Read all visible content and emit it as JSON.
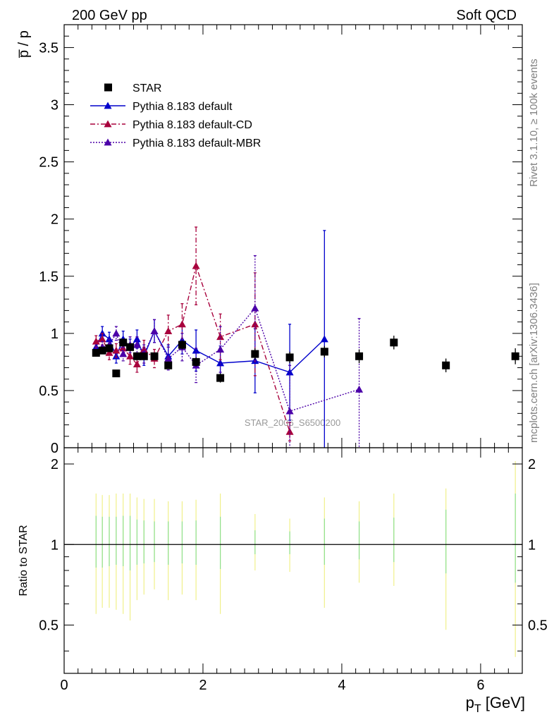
{
  "header": {
    "left": "200 GeV pp",
    "right": "Soft QCD",
    "side_top": "Rivet 3.1.10, ≥ 100k events",
    "side_bottom": "mcplots.cern.ch [arXiv:1306.3436]",
    "watermark": "STAR_2006_S6500200"
  },
  "chart_data": [
    {
      "type": "scatter",
      "panel": "main",
      "ylabel": "p̅ / p",
      "xlabel": "",
      "xlim": [
        0,
        6.6
      ],
      "ylim": [
        0,
        3.7
      ],
      "y_ticks": [
        "0",
        "0.5",
        "1",
        "1.5",
        "2",
        "2.5",
        "3",
        "3.5"
      ],
      "legend_position": "top-left",
      "series": [
        {
          "name": "STAR",
          "color": "#000000",
          "marker": "square",
          "line": "none",
          "x": [
            0.46,
            0.55,
            0.65,
            0.75,
            0.85,
            0.95,
            1.05,
            1.15,
            1.3,
            1.5,
            1.7,
            1.9,
            2.25,
            2.75,
            3.25,
            3.75,
            4.25,
            4.75,
            5.5,
            6.5
          ],
          "y": [
            0.83,
            0.85,
            0.87,
            0.65,
            0.92,
            0.88,
            0.8,
            0.8,
            0.8,
            0.72,
            0.9,
            0.75,
            0.61,
            0.82,
            0.79,
            0.84,
            0.8,
            0.92,
            0.72,
            0.8
          ],
          "err": [
            0.02,
            0.02,
            0.02,
            0.02,
            0.03,
            0.03,
            0.03,
            0.03,
            0.03,
            0.03,
            0.04,
            0.04,
            0.04,
            0.05,
            0.05,
            0.05,
            0.06,
            0.06,
            0.06,
            0.07
          ]
        },
        {
          "name": "Pythia 8.183 default",
          "color": "#0000cc",
          "marker": "triangle",
          "line": "solid",
          "x": [
            0.46,
            0.55,
            0.65,
            0.75,
            0.85,
            0.95,
            1.05,
            1.15,
            1.3,
            1.5,
            1.7,
            1.9,
            2.25,
            2.75,
            3.25,
            3.75
          ],
          "y": [
            0.88,
            1.0,
            0.95,
            0.8,
            0.95,
            0.88,
            0.95,
            0.8,
            1.02,
            0.8,
            0.94,
            0.85,
            0.74,
            0.76,
            0.66,
            0.95
          ],
          "err": [
            0.05,
            0.06,
            0.06,
            0.06,
            0.07,
            0.07,
            0.08,
            0.08,
            0.1,
            0.1,
            0.12,
            0.18,
            0.15,
            0.28,
            0.42,
            0.95
          ]
        },
        {
          "name": "Pythia 8.183 default-CD",
          "color": "#a8003c",
          "marker": "triangle",
          "line": "dashdot",
          "x": [
            0.46,
            0.55,
            0.65,
            0.75,
            0.85,
            0.95,
            1.05,
            1.15,
            1.3,
            1.5,
            1.7,
            1.9,
            2.25,
            2.75,
            3.25
          ],
          "y": [
            0.93,
            0.95,
            0.83,
            0.85,
            0.87,
            0.8,
            0.73,
            0.86,
            0.78,
            1.02,
            1.08,
            1.59,
            0.97,
            1.08,
            0.14
          ],
          "err": [
            0.05,
            0.05,
            0.06,
            0.06,
            0.07,
            0.07,
            0.07,
            0.08,
            0.08,
            0.14,
            0.18,
            0.34,
            0.2,
            0.45,
            0.08
          ]
        },
        {
          "name": "Pythia 8.183 default-MBR",
          "color": "#4b00a8",
          "marker": "triangle",
          "line": "dotted",
          "x": [
            0.46,
            0.55,
            0.65,
            0.75,
            0.85,
            0.95,
            1.05,
            1.15,
            1.3,
            1.5,
            1.7,
            1.9,
            2.25,
            2.75,
            3.25,
            4.25
          ],
          "y": [
            0.85,
            0.88,
            0.9,
            1.0,
            0.82,
            0.9,
            0.9,
            0.82,
            1.02,
            0.78,
            0.88,
            0.72,
            0.86,
            1.22,
            0.32,
            0.51
          ],
          "err": [
            0.04,
            0.05,
            0.05,
            0.06,
            0.06,
            0.07,
            0.07,
            0.08,
            0.1,
            0.1,
            0.12,
            0.15,
            0.2,
            0.46,
            0.4,
            0.62
          ]
        }
      ]
    },
    {
      "type": "scatter",
      "panel": "ratio",
      "ylabel": "Ratio to STAR",
      "xlabel": "p_T [GeV]",
      "xlabel_main": "p",
      "xlabel_sub": "T",
      "xlabel_unit": " [GeV]",
      "xlim": [
        0,
        6.6
      ],
      "ylim": [
        0.33,
        2.3
      ],
      "y_ticks": [
        "0.5",
        "1",
        "2"
      ],
      "x_ticks": [
        "0",
        "2",
        "4",
        "6"
      ],
      "reference_line": 1,
      "bands": {
        "colors": {
          "outer": "#f0f08a",
          "inner": "#8ee08e"
        },
        "x": [
          0.46,
          0.55,
          0.65,
          0.75,
          0.85,
          0.95,
          1.05,
          1.15,
          1.3,
          1.5,
          1.7,
          1.9,
          2.25,
          2.75,
          3.25,
          3.75,
          4.25,
          4.75,
          5.5,
          6.5
        ],
        "outer_lo": [
          0.55,
          0.58,
          0.58,
          0.57,
          0.55,
          0.52,
          0.62,
          0.65,
          0.68,
          0.62,
          0.65,
          0.62,
          0.55,
          0.8,
          0.79,
          0.58,
          0.72,
          0.7,
          0.48,
          0.38
        ],
        "outer_hi": [
          1.55,
          1.53,
          1.53,
          1.55,
          1.55,
          1.55,
          1.5,
          1.48,
          1.48,
          1.45,
          1.45,
          1.47,
          1.55,
          1.3,
          1.25,
          1.5,
          1.45,
          1.55,
          1.62,
          2.05
        ],
        "inner_lo": [
          0.82,
          0.82,
          0.83,
          0.84,
          0.83,
          0.8,
          0.84,
          0.85,
          0.86,
          0.84,
          0.85,
          0.84,
          0.81,
          0.92,
          0.92,
          0.84,
          0.88,
          0.86,
          0.78,
          0.72
        ],
        "inner_hi": [
          1.28,
          1.27,
          1.27,
          1.27,
          1.28,
          1.28,
          1.24,
          1.23,
          1.22,
          1.22,
          1.22,
          1.23,
          1.27,
          1.13,
          1.12,
          1.25,
          1.22,
          1.26,
          1.35,
          1.55
        ]
      }
    }
  ]
}
